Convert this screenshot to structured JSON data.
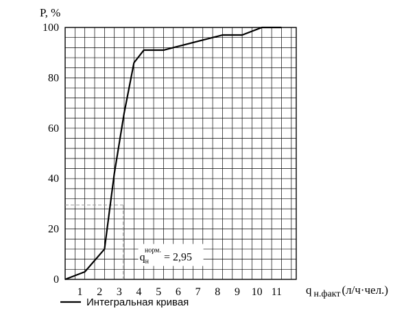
{
  "chart_data": {
    "type": "line",
    "ylabel": "P, %",
    "xlabel": {
      "main": "q",
      "subscript": "н.факт",
      "unit": "(л/ч·чел.)"
    },
    "x_ticks": [
      1,
      2,
      3,
      4,
      5,
      6,
      7,
      8,
      9,
      10,
      11
    ],
    "y_ticks": [
      0,
      20,
      40,
      60,
      80,
      100
    ],
    "xlim": [
      0,
      11.75
    ],
    "ylim": [
      0,
      100
    ],
    "grid": true,
    "grid_x_step": 0.5,
    "grid_y_step": 4,
    "series": [
      {
        "name": "Интегральная кривая",
        "x": [
          0,
          1,
          2,
          2.5,
          3,
          3.5,
          4,
          5,
          6,
          7,
          8,
          9,
          10,
          11
        ],
        "y": [
          0,
          3,
          12,
          42,
          66,
          86,
          91,
          91,
          93,
          95,
          97,
          97,
          100,
          100
        ]
      }
    ],
    "annotation": {
      "text_main": "q",
      "text_sub": "н",
      "text_sup": "норм.",
      "text_value": " = 2,95",
      "x": 2.95,
      "y": 29.5
    },
    "legend": {
      "position": "bottom-left",
      "label": "Интегральная кривая"
    }
  }
}
